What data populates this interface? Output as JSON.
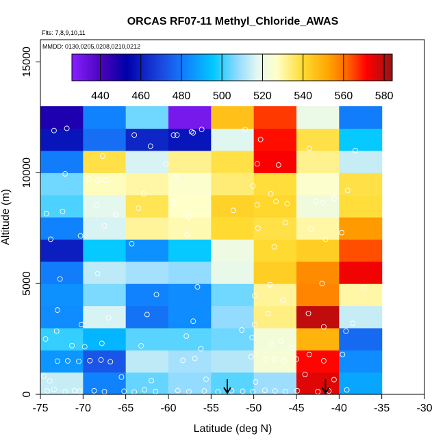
{
  "chart_data": {
    "type": "heatmap",
    "title": "ORCAS RF07-11 Methyl_Chloride_AWAS",
    "flights_note": "Flts: 7,8,9,10,11",
    "dates_note": "MMDD: 0130,0205,0208,0210,0212",
    "xlabel": "Latitude (deg N)",
    "ylabel": "Altitude (m)",
    "xlim": [
      -75,
      -30
    ],
    "ylim": [
      0,
      16000
    ],
    "x_ticks": [
      -75,
      -70,
      -65,
      -60,
      -55,
      -50,
      -45,
      -40,
      -35,
      -30
    ],
    "x_tick_labels": [
      "-75",
      "-70",
      "-65",
      "-60",
      "-55",
      "-50",
      "-45",
      "-40",
      "-35",
      "-30"
    ],
    "y_ticks": [
      0,
      5000,
      10000,
      15000
    ],
    "y_tick_labels": [
      "0",
      "5000",
      "10000",
      "15000"
    ],
    "colorbar": {
      "min": 426,
      "max": 584,
      "ticks": [
        440,
        460,
        480,
        500,
        520,
        540,
        560,
        580
      ],
      "tick_labels": [
        "440",
        "460",
        "480",
        "500",
        "520",
        "540",
        "560",
        "580"
      ]
    },
    "lat_bins": [
      -75,
      -70,
      -65,
      -60,
      -55,
      -50,
      -45,
      -40,
      -35
    ],
    "alt_bin_size": 1000,
    "cells": [
      [
        514,
        482,
        504,
        508,
        503,
        509,
        575,
        489
      ],
      [
        486,
        473,
        513,
        510,
        512,
        524,
        571,
        484
      ],
      [
        500,
        492,
        503,
        503,
        505,
        523,
        549,
        477
      ],
      [
        484,
        516,
        479,
        484,
        508,
        533,
        579,
        514
      ],
      [
        485,
        506,
        482,
        484,
        505,
        531,
        557,
        530
      ],
      [
        481,
        513,
        510,
        508,
        519,
        543,
        556,
        573
      ],
      [
        460,
        496,
        485,
        496,
        521,
        540,
        543,
        564
      ],
      [
        482,
        516,
        531,
        529,
        540,
        538,
        530,
        554
      ],
      [
        502,
        518,
        537,
        527,
        542,
        541,
        522,
        539
      ],
      [
        505,
        528,
        530,
        526,
        534,
        539,
        526,
        538
      ],
      [
        481,
        538,
        516,
        532,
        538,
        572,
        532,
        514
      ],
      [
        458,
        478,
        462,
        458,
        517,
        570,
        538,
        496
      ],
      [
        448,
        482,
        505,
        430,
        546,
        566,
        520,
        481
      ]
    ],
    "sample_points": [
      [
        -74.2,
        150
      ],
      [
        -73.4,
        220
      ],
      [
        -72.1,
        120
      ],
      [
        -71.0,
        160
      ],
      [
        -70.4,
        140
      ],
      [
        -68.7,
        160
      ],
      [
        -67.5,
        120
      ],
      [
        -65.2,
        140
      ],
      [
        -64.0,
        110
      ],
      [
        -62.8,
        200
      ],
      [
        -61.5,
        130
      ],
      [
        -58.9,
        170
      ],
      [
        -57.6,
        120
      ],
      [
        -55.8,
        150
      ],
      [
        -54.2,
        110
      ],
      [
        -52.6,
        160
      ],
      [
        -51.3,
        140
      ],
      [
        -50.1,
        120
      ],
      [
        -48.7,
        180
      ],
      [
        -47.5,
        150
      ],
      [
        -46.3,
        130
      ],
      [
        -44.9,
        160
      ],
      [
        -42.5,
        120
      ],
      [
        -41.2,
        150
      ],
      [
        -39.1,
        200
      ],
      [
        -74.6,
        820
      ],
      [
        -73.9,
        600
      ],
      [
        -65.5,
        780
      ],
      [
        -62.0,
        620
      ],
      [
        -55.6,
        680
      ],
      [
        -49.8,
        560
      ],
      [
        -44.0,
        900
      ],
      [
        -40.6,
        660
      ],
      [
        -73.0,
        1500
      ],
      [
        -71.8,
        1510
      ],
      [
        -70.5,
        1490
      ],
      [
        -69.2,
        1520
      ],
      [
        -67.9,
        1550
      ],
      [
        -66.8,
        1470
      ],
      [
        -58.3,
        1530
      ],
      [
        -56.9,
        1620
      ],
      [
        -50.3,
        1700
      ],
      [
        -48.6,
        1560
      ],
      [
        -47.6,
        1570
      ],
      [
        -46.4,
        1510
      ],
      [
        -45.0,
        1590
      ],
      [
        -43.5,
        1800
      ],
      [
        -41.8,
        1510
      ],
      [
        -39.6,
        1800
      ],
      [
        -74.4,
        2500
      ],
      [
        -73.1,
        2850
      ],
      [
        -71.3,
        2200
      ],
      [
        -69.8,
        2150
      ],
      [
        -67.8,
        2300
      ],
      [
        -63.2,
        2190
      ],
      [
        -57.9,
        2630
      ],
      [
        -56.2,
        2050
      ],
      [
        -51.4,
        2900
      ],
      [
        -50.2,
        2560
      ],
      [
        -47.9,
        2250
      ],
      [
        -46.8,
        2400
      ],
      [
        -45.5,
        2100
      ],
      [
        -39.2,
        2850
      ],
      [
        -73.0,
        3800
      ],
      [
        -70.2,
        3150
      ],
      [
        -67.0,
        3450
      ],
      [
        -62.5,
        3600
      ],
      [
        -57.1,
        3300
      ],
      [
        -49.9,
        3150
      ],
      [
        -48.3,
        3650
      ],
      [
        -43.6,
        3650
      ],
      [
        -41.8,
        3050
      ],
      [
        -38.4,
        3200
      ],
      [
        -72.7,
        5200
      ],
      [
        -68.3,
        5450
      ],
      [
        -61.4,
        4500
      ],
      [
        -56.6,
        4850
      ],
      [
        -49.9,
        4450
      ],
      [
        -48.1,
        4950
      ],
      [
        -46.6,
        4250
      ],
      [
        -42.0,
        5000
      ],
      [
        -37.1,
        4800
      ],
      [
        -73.8,
        7000
      ],
      [
        -70.3,
        7150
      ],
      [
        -67.5,
        7600
      ],
      [
        -64.3,
        6800
      ],
      [
        -57.8,
        7200
      ],
      [
        -49.5,
        7500
      ],
      [
        -47.6,
        6650
      ],
      [
        -46.3,
        7750
      ],
      [
        -43.3,
        7450
      ],
      [
        -41.6,
        7000
      ],
      [
        -39.7,
        7300
      ],
      [
        -74.3,
        8150
      ],
      [
        -72.4,
        8250
      ],
      [
        -68.4,
        8550
      ],
      [
        -66.2,
        8100
      ],
      [
        -63.5,
        8400
      ],
      [
        -59.4,
        8650
      ],
      [
        -57.6,
        8000
      ],
      [
        -52.4,
        8300
      ],
      [
        -49.6,
        8550
      ],
      [
        -47.4,
        8700
      ],
      [
        -46.1,
        8600
      ],
      [
        -42.7,
        8700
      ],
      [
        -41.9,
        8650
      ],
      [
        -40.6,
        8850
      ],
      [
        -69.3,
        9700
      ],
      [
        -68.3,
        9650
      ],
      [
        -67.4,
        9650
      ],
      [
        -62.9,
        9050
      ],
      [
        -59.1,
        9850
      ],
      [
        -50.1,
        9400
      ],
      [
        -48.0,
        9050
      ],
      [
        -39.0,
        9200
      ],
      [
        -72.1,
        9950
      ],
      [
        -67.7,
        10750
      ],
      [
        -60.3,
        10400
      ],
      [
        -49.6,
        10400
      ],
      [
        -47.1,
        10350
      ],
      [
        -38.1,
        11000
      ],
      [
        -73.4,
        11900
      ],
      [
        -71.9,
        12000
      ],
      [
        -64.0,
        11700
      ],
      [
        -62.1,
        11200
      ],
      [
        -59.4,
        11700
      ],
      [
        -59.0,
        11700
      ],
      [
        -57.1,
        11800
      ],
      [
        -57.3,
        11850
      ],
      [
        -56.1,
        11950
      ],
      [
        -51.0,
        11950
      ],
      [
        -49.2,
        11500
      ],
      [
        -43.5,
        11100
      ]
    ],
    "arrows_at_lat": [
      -53.1,
      -41.6
    ]
  }
}
